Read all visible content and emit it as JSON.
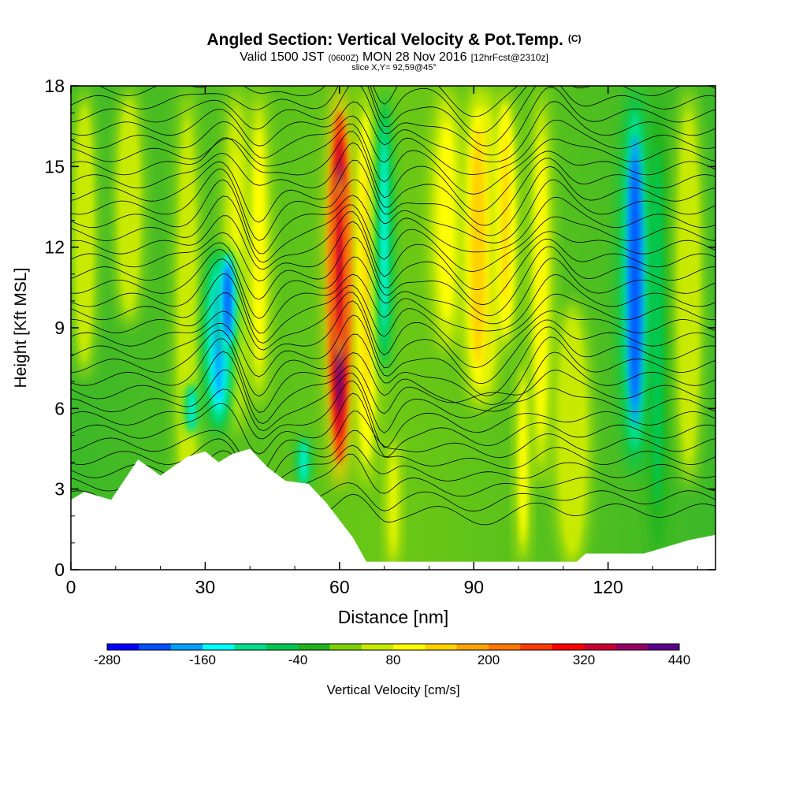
{
  "header": {
    "title": "Angled Section: Vertical Velocity & Pot.Temp.",
    "title_suffix": "(C)",
    "valid_prefix": "Valid 1500 JST",
    "valid_utc": "(0600Z)",
    "valid_date": "MON 28 Nov 2016",
    "forecast": "[12hrFcst@2310z]",
    "slice": "slice X,Y= 92,59@45°"
  },
  "chart_data": {
    "type": "heatmap",
    "xlabel": "Distance [nm]",
    "ylabel": "Height [Kft MSL]",
    "xlim": [
      0,
      144
    ],
    "ylim": [
      0,
      18
    ],
    "x_ticks": [
      0,
      30,
      60,
      90,
      120
    ],
    "y_ticks": [
      0,
      3,
      6,
      9,
      12,
      15,
      18
    ],
    "colorbar": {
      "label": "Vertical Velocity [cm/s]",
      "tick_labels": [
        "-280",
        "-160",
        "-40",
        "80",
        "200",
        "320",
        "440"
      ],
      "tick_values": [
        -280,
        -160,
        -40,
        80,
        200,
        320,
        440
      ],
      "range": [
        -280,
        440
      ],
      "colors": [
        "#0000ff",
        "#0050ff",
        "#00a0ff",
        "#00ffff",
        "#00e08c",
        "#00c850",
        "#20b41c",
        "#7cd200",
        "#c8ea00",
        "#ffff00",
        "#ffd200",
        "#ffa500",
        "#ff7800",
        "#ff3c00",
        "#ff0000",
        "#c80032",
        "#960064",
        "#5a008c"
      ]
    },
    "velocity_features": [
      {
        "type": "updraft",
        "x": 60,
        "y_from": 3,
        "y_to": 18,
        "peak": 440
      },
      {
        "type": "downdraft",
        "x": 33,
        "y_from": 5,
        "y_to": 12,
        "peak": -200
      },
      {
        "type": "downdraft",
        "x": 126,
        "y_from": 3.5,
        "y_to": 18,
        "peak": -220
      },
      {
        "type": "updraft",
        "x": 91,
        "y_from": 6,
        "y_to": 18,
        "peak": 150
      }
    ],
    "theta_contours": "potential temperature isentropes, black lines",
    "terrain_heights": [
      [
        0,
        2.6
      ],
      [
        3,
        2.9
      ],
      [
        9,
        2.6
      ],
      [
        13,
        3.6
      ],
      [
        15,
        4.1
      ],
      [
        20,
        3.5
      ],
      [
        26,
        4.2
      ],
      [
        30,
        4.4
      ],
      [
        33,
        4.0
      ],
      [
        36,
        4.3
      ],
      [
        40,
        4.5
      ],
      [
        44,
        3.8
      ],
      [
        48,
        3.3
      ],
      [
        53,
        3.2
      ],
      [
        57,
        2.5
      ],
      [
        63,
        1.2
      ],
      [
        66,
        0.3
      ],
      [
        113,
        0.3
      ],
      [
        115,
        0.6
      ],
      [
        128,
        0.6
      ],
      [
        138,
        1.1
      ],
      [
        144,
        1.3
      ]
    ]
  }
}
